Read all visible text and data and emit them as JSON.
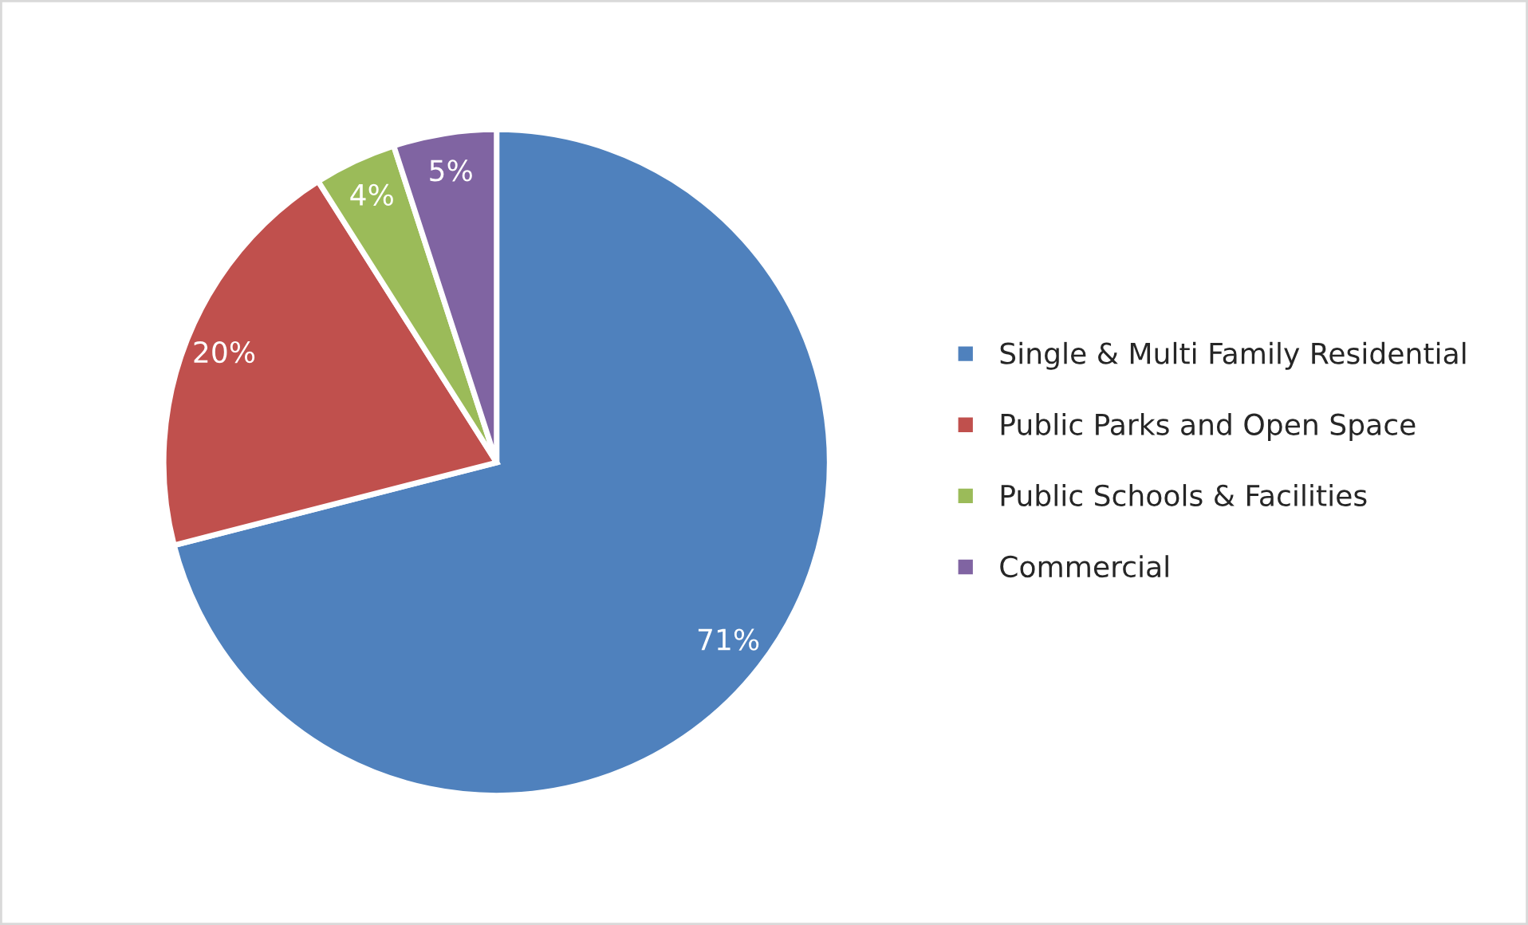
{
  "chart_data": {
    "type": "pie",
    "categories": [
      "Single & Multi Family Residential",
      "Public Parks and Open Space",
      "Public Schools & Facilities",
      "Commercial"
    ],
    "values": [
      71,
      20,
      4,
      5
    ],
    "value_labels": [
      "71%",
      "20%",
      "4%",
      "5%"
    ],
    "colors": [
      "#4f81bd",
      "#c0504d",
      "#9bbb59",
      "#8064a2"
    ],
    "legend": "right"
  }
}
